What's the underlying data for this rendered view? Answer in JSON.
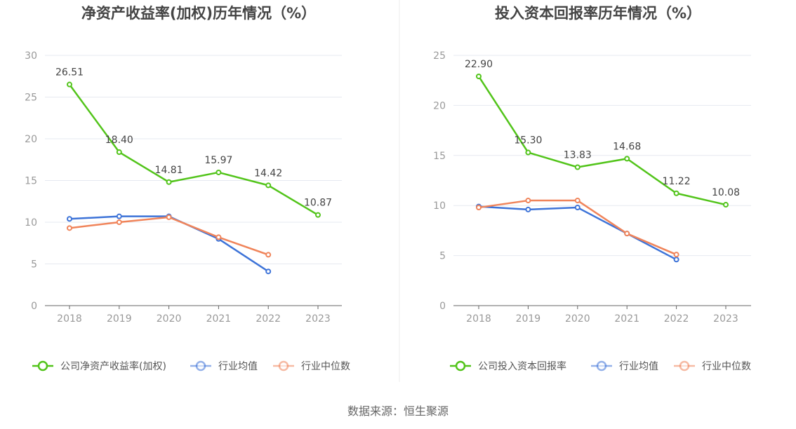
{
  "source_text": "数据来源：恒生聚源",
  "chart_data": [
    {
      "type": "line",
      "title": "净资产收益率(加权)历年情况（%）",
      "categories": [
        "2018",
        "2019",
        "2020",
        "2021",
        "2022",
        "2023"
      ],
      "ylim": [
        0,
        30
      ],
      "yticks": [
        0,
        5,
        10,
        15,
        20,
        25,
        30
      ],
      "grid": true,
      "legend_position": "bottom",
      "series": [
        {
          "name": "公司净资产收益率(加权)",
          "color": "#52c41a",
          "values": [
            26.51,
            18.4,
            14.81,
            15.97,
            14.42,
            10.87
          ],
          "labels": [
            "26.51",
            "18.40",
            "14.81",
            "15.97",
            "14.42",
            "10.87"
          ]
        },
        {
          "name": "行业均值",
          "color": "#3d73d8",
          "values": [
            10.4,
            10.7,
            10.7,
            8.0,
            4.1,
            null
          ]
        },
        {
          "name": "行业中位数",
          "color": "#f0845a",
          "values": [
            9.3,
            10.0,
            10.6,
            8.2,
            6.1,
            null
          ]
        }
      ]
    },
    {
      "type": "line",
      "title": "投入资本回报率历年情况（%）",
      "categories": [
        "2018",
        "2019",
        "2020",
        "2021",
        "2022",
        "2023"
      ],
      "ylim": [
        0,
        25
      ],
      "yticks": [
        0,
        5,
        10,
        15,
        20,
        25
      ],
      "grid": true,
      "legend_position": "bottom",
      "series": [
        {
          "name": "公司投入资本回报率",
          "color": "#52c41a",
          "values": [
            22.9,
            15.3,
            13.83,
            14.68,
            11.22,
            10.08
          ],
          "labels": [
            "22.90",
            "15.30",
            "13.83",
            "14.68",
            "11.22",
            "10.08"
          ]
        },
        {
          "name": "行业均值",
          "color": "#3d73d8",
          "values": [
            9.9,
            9.6,
            9.8,
            7.2,
            4.6,
            null
          ]
        },
        {
          "name": "行业中位数",
          "color": "#f0845a",
          "values": [
            9.8,
            10.5,
            10.5,
            7.2,
            5.1,
            null
          ]
        }
      ]
    }
  ]
}
